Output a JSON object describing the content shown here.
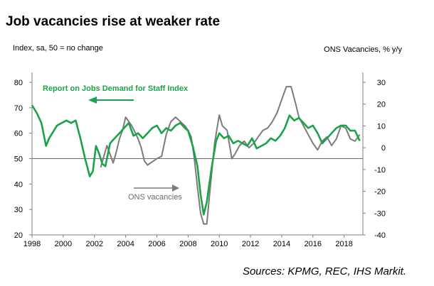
{
  "title": "Job vacancies rise at weaker rate",
  "sources": "Sources: KPMG, REC, IHS Markit.",
  "colors": {
    "green": "#1ca24b",
    "grey": "#7b7b7b",
    "axis": "#7f7f7f"
  },
  "chart_data": {
    "type": "line",
    "ylabel_left": "Index, sa, 50 = no change",
    "ylabel_right": "ONS Vacancies, % y/y",
    "xlim": [
      1998,
      2019.2
    ],
    "ylim_left": [
      20,
      80
    ],
    "ylim_right": [
      -40,
      30
    ],
    "x_ticks": [
      "1998",
      "2000",
      "2002",
      "2004",
      "2006",
      "2008",
      "2010",
      "2012",
      "2014",
      "2016",
      "2018"
    ],
    "y_ticks_left": [
      "80",
      "70",
      "60",
      "50",
      "40",
      "30",
      "20"
    ],
    "y_ticks_right": [
      "30",
      "20",
      "10",
      "0",
      "-10",
      "-20",
      "-30",
      "-40"
    ],
    "reference_line_left": 50,
    "annotations": {
      "green_label": "Report on Jobs Demand for Staff Index",
      "grey_label": "ONS vacancies"
    },
    "series": [
      {
        "name": "Report on Jobs Demand for Staff Index",
        "axis": "left",
        "x": [
          1998.0,
          1998.3,
          1998.6,
          1998.9,
          1999.1,
          1999.4,
          1999.6,
          1999.9,
          2000.2,
          2000.5,
          2000.8,
          2001.1,
          2001.4,
          2001.7,
          2001.9,
          2002.1,
          2002.3,
          2002.5,
          2002.7,
          2003.0,
          2003.3,
          2003.6,
          2003.9,
          2004.2,
          2004.5,
          2004.8,
          2005.1,
          2005.4,
          2005.7,
          2006.0,
          2006.3,
          2006.6,
          2006.9,
          2007.2,
          2007.5,
          2007.8,
          2008.0,
          2008.3,
          2008.6,
          2008.8,
          2009.0,
          2009.2,
          2009.5,
          2009.8,
          2010.0,
          2010.3,
          2010.6,
          2010.9,
          2011.2,
          2011.5,
          2011.8,
          2012.1,
          2012.4,
          2012.7,
          2013.0,
          2013.3,
          2013.6,
          2013.9,
          2014.2,
          2014.5,
          2014.8,
          2015.1,
          2015.4,
          2015.7,
          2016.0,
          2016.3,
          2016.6,
          2016.9,
          2017.2,
          2017.5,
          2017.8,
          2018.1,
          2018.4,
          2018.7,
          2019.0
        ],
        "values": [
          71,
          68,
          64,
          55,
          58,
          61,
          63,
          64,
          65,
          64,
          65,
          58,
          50,
          43,
          45,
          55,
          52,
          48,
          47,
          56,
          58,
          60,
          62,
          64,
          59,
          60,
          58,
          60,
          62,
          63,
          60,
          62,
          61,
          63,
          64,
          62,
          61,
          55,
          47,
          36,
          28,
          33,
          46,
          57,
          60,
          58,
          59,
          56,
          57,
          56,
          55,
          58,
          54,
          55,
          56,
          58,
          57,
          59,
          62,
          67,
          65,
          66,
          64,
          62,
          63,
          60,
          56,
          58,
          60,
          62,
          63,
          63,
          61,
          61,
          57
        ]
      },
      {
        "name": "ONS vacancies",
        "axis": "right",
        "x": [
          2002.4,
          2002.6,
          2002.8,
          2003.0,
          2003.2,
          2003.4,
          2003.6,
          2003.8,
          2004.0,
          2004.2,
          2004.4,
          2004.6,
          2004.8,
          2005.0,
          2005.2,
          2005.4,
          2005.6,
          2005.8,
          2006.0,
          2006.3,
          2006.6,
          2006.9,
          2007.2,
          2007.5,
          2007.8,
          2008.0,
          2008.2,
          2008.4,
          2008.6,
          2008.8,
          2009.0,
          2009.2,
          2009.4,
          2009.7,
          2010.0,
          2010.2,
          2010.5,
          2010.8,
          2011.0,
          2011.3,
          2011.6,
          2011.9,
          2012.2,
          2012.5,
          2012.8,
          2013.1,
          2013.4,
          2013.7,
          2014.0,
          2014.3,
          2014.6,
          2014.9,
          2015.1,
          2015.4,
          2015.7,
          2016.0,
          2016.3,
          2016.6,
          2016.9,
          2017.2,
          2017.5,
          2017.8,
          2018.1,
          2018.4,
          2018.7,
          2019.0
        ],
        "values": [
          -9,
          -4,
          1,
          -3,
          -7,
          -2,
          4,
          8,
          14,
          12,
          10,
          7,
          4,
          0,
          -6,
          -8,
          -7,
          -6,
          -5,
          -4,
          6,
          12,
          14,
          12,
          10,
          8,
          5,
          -5,
          -18,
          -30,
          -35,
          -35,
          -20,
          2,
          15,
          10,
          8,
          -5,
          -3,
          1,
          3,
          0,
          2,
          5,
          8,
          9,
          12,
          16,
          22,
          28,
          28,
          20,
          14,
          10,
          6,
          2,
          -1,
          3,
          5,
          1,
          4,
          10,
          9,
          4,
          3,
          6
        ]
      }
    ]
  }
}
